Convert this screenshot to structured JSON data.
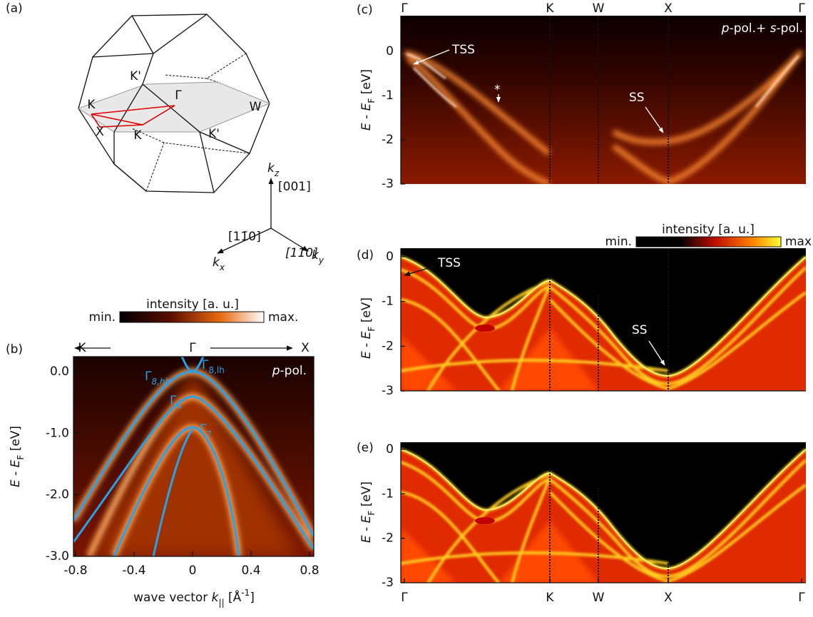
{
  "panel_a": {
    "label": "(a)",
    "points": [
      "K'",
      "Γ",
      "K",
      "W",
      "X",
      "K",
      "K'"
    ],
    "axes": {
      "kz": [
        "k",
        "z"
      ],
      "kz_dir": "[001]",
      "kx": [
        "k",
        "x"
      ],
      "kx_dir": "[11̄0]",
      "ky": [
        "k",
        "y"
      ],
      "ky_dir": "[110]"
    }
  },
  "panel_b": {
    "label": "(b)",
    "colorbar": {
      "title": "intensity [a. u.]",
      "min": "min.",
      "max": "max."
    },
    "directions": [
      "K",
      "Γ",
      "X"
    ],
    "polarization": [
      "p",
      "-pol."
    ],
    "bands": [
      [
        "Γ",
        "8,hh"
      ],
      [
        "Γ",
        "8,lh"
      ],
      [
        "Γ",
        "6"
      ],
      [
        "Γ",
        "7"
      ]
    ],
    "y_axis": {
      "label": [
        "E",
        " - ",
        "E",
        "F",
        " [eV]"
      ],
      "ticks": [
        "0.0",
        "-1.0",
        "-2.0",
        "-3.0"
      ]
    },
    "x_axis": {
      "label": [
        "wave vector ",
        "k",
        "||",
        " [Å",
        "-1",
        "]"
      ],
      "ticks": [
        "-0.8",
        "-0.4",
        "0",
        "0.4",
        "0.8"
      ]
    }
  },
  "panel_c": {
    "label": "(c)",
    "k_points": [
      "Γ",
      "K",
      "W",
      "X",
      "Γ"
    ],
    "polarization": [
      "p",
      "-pol.+ ",
      "s",
      "-pol."
    ],
    "annotations": {
      "tss": "TSS",
      "star": "*",
      "ss": "SS"
    },
    "y_axis": {
      "label": [
        "E",
        " - ",
        "E",
        "F",
        " [eV]"
      ],
      "ticks": [
        "0",
        "-1",
        "-2",
        "-3"
      ]
    }
  },
  "panel_d": {
    "label": "(d)",
    "colorbar": {
      "title": "intensity [a. u.]",
      "min": "min.",
      "max": "max."
    },
    "annotations": {
      "tss": "TSS",
      "ss": "SS"
    },
    "y_axis": {
      "label": [
        "E",
        " - ",
        "E",
        "F",
        " [eV]"
      ],
      "ticks": [
        "0",
        "-1",
        "-2",
        "-3"
      ]
    }
  },
  "panel_e": {
    "label": "(e)",
    "k_points": [
      "Γ",
      "K",
      "W",
      "X",
      "Γ"
    ],
    "y_axis": {
      "label": [
        "E",
        " - ",
        "E",
        "F",
        " [eV]"
      ],
      "ticks": [
        "0",
        "-1",
        "-2",
        "-3"
      ]
    }
  }
}
